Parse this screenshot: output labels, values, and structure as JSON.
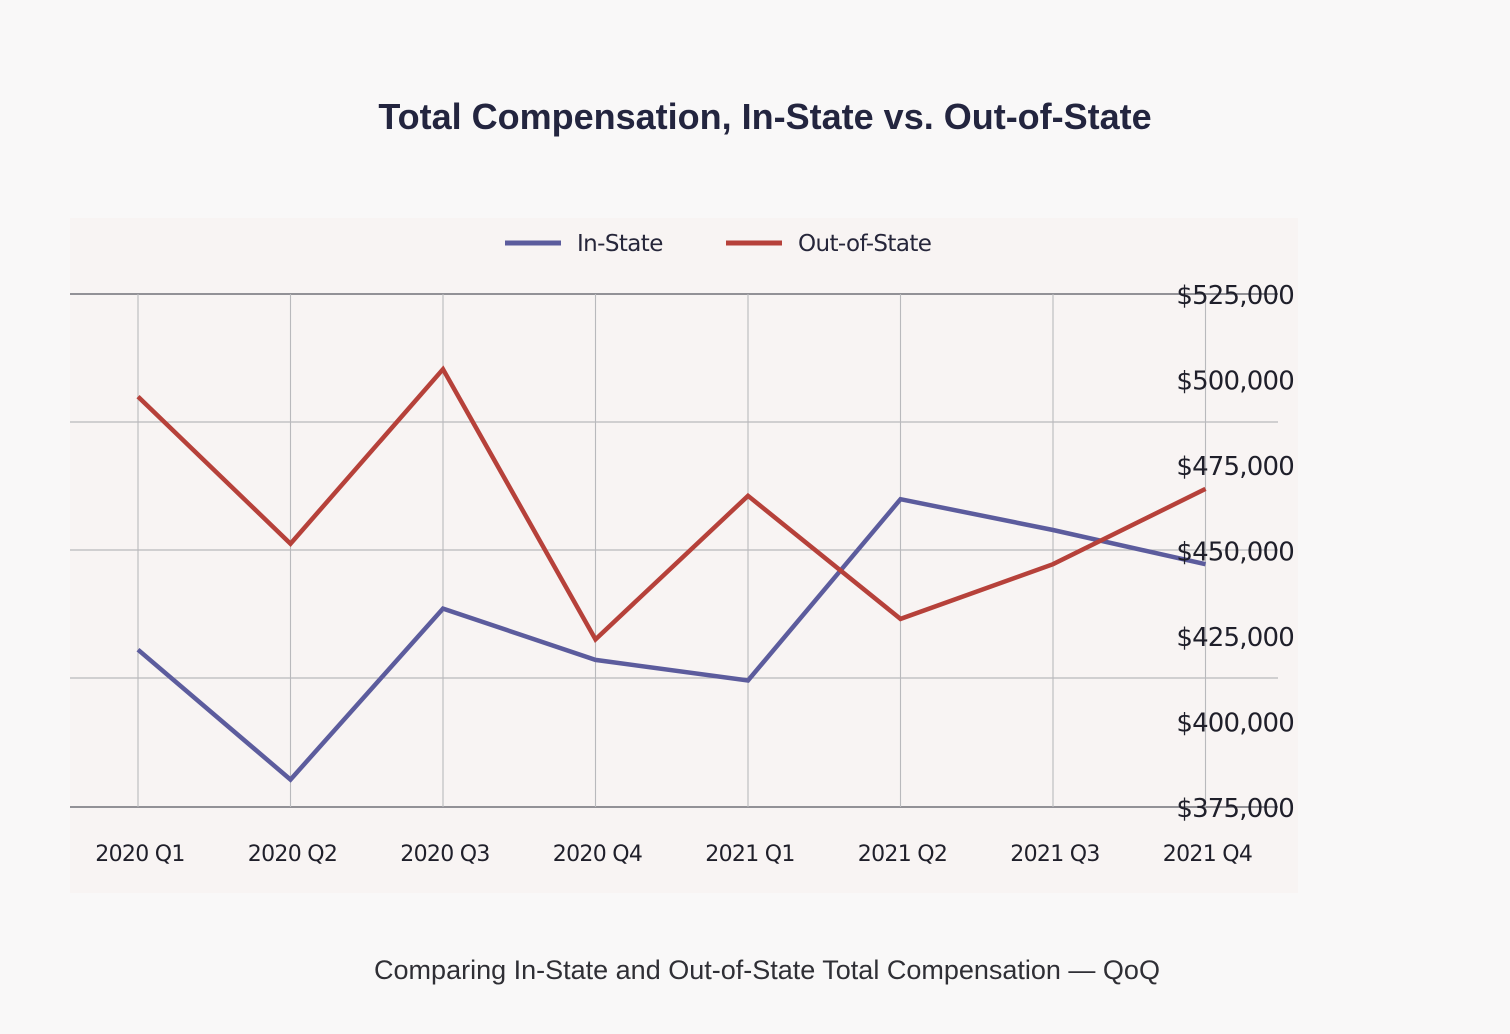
{
  "title": "Total Compensation, In-State vs. Out-of-State",
  "caption": "Comparing In-State and Out-of-State Total Compensation — QoQ",
  "colors": {
    "background": "#f9f8f8",
    "plot_background": "#f8f4f3",
    "in_state": "#5c5c9d",
    "out_of_state": "#b6413a",
    "grid": "#b9b9bc",
    "axis": "#707078"
  },
  "chart_data": {
    "type": "line",
    "title": "Total Compensation, In-State vs. Out-of-State",
    "categories": [
      "2020 Q1",
      "2020 Q2",
      "2020 Q3",
      "2020 Q4",
      "2021 Q1",
      "2021 Q2",
      "2021 Q3",
      "2021 Q4"
    ],
    "series": [
      {
        "name": "In-State",
        "color": "#5c5c9d",
        "values": [
          421000,
          383000,
          433000,
          418000,
          412000,
          465000,
          456000,
          446000
        ]
      },
      {
        "name": "Out-of-State",
        "color": "#b6413a",
        "values": [
          495000,
          452000,
          503000,
          424000,
          466000,
          430000,
          446000,
          468000
        ]
      }
    ],
    "y_ticks": [
      "$525,000",
      "$500,000",
      "$475,000",
      "$450,000",
      "$425,000",
      "$400,000",
      "$375,000"
    ],
    "ylim": [
      375000,
      525000
    ],
    "y_axis_position": "right",
    "legend_position": "top-center",
    "grid": true
  }
}
